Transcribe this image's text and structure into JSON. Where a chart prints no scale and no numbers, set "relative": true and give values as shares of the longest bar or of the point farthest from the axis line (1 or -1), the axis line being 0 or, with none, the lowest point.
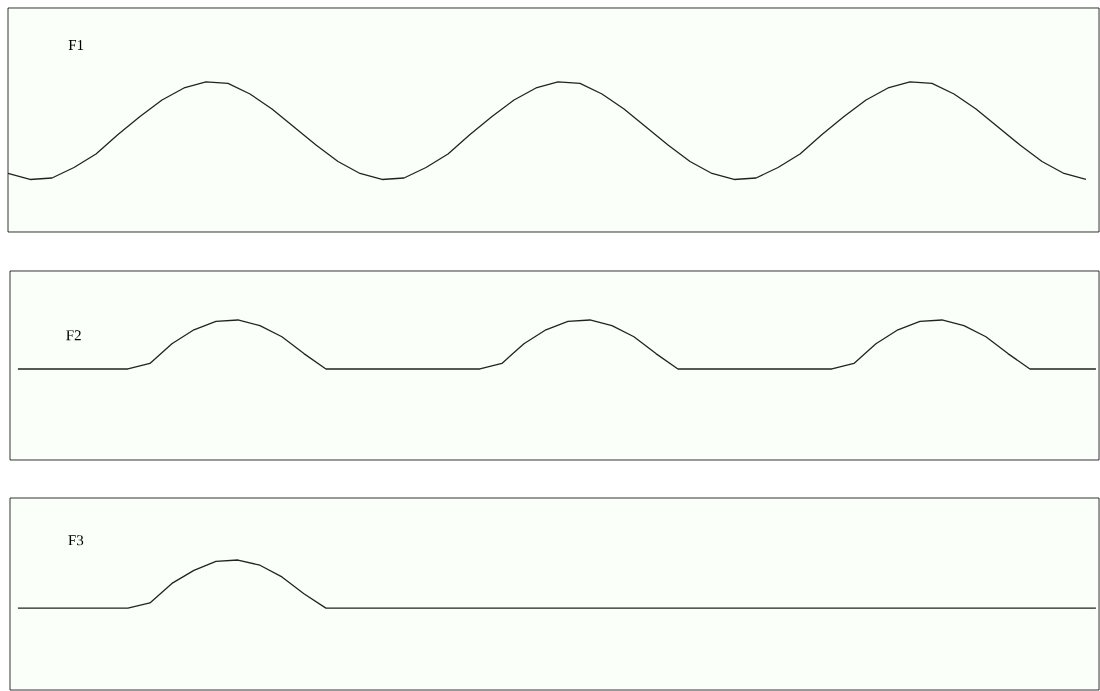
{
  "chart_data": [
    {
      "type": "line",
      "relative": true,
      "color": "#222222",
      "annotations": [
        "F1"
      ],
      "categories": [
        null,
        null,
        null,
        null,
        null,
        null,
        null,
        null,
        null,
        null,
        null,
        null,
        null,
        null,
        null,
        null,
        null,
        null,
        null,
        null,
        null,
        null,
        null,
        null,
        null,
        null,
        null,
        null,
        null,
        null,
        null,
        null,
        null,
        null,
        null,
        null,
        null,
        null,
        null,
        null,
        null,
        null,
        null,
        null,
        null,
        null,
        null,
        null,
        null,
        null
      ],
      "values": [
        0.39,
        0.35,
        0.36,
        0.43,
        0.52,
        0.65,
        0.77,
        0.88,
        0.96,
        1.0,
        0.99,
        0.92,
        0.82,
        0.7,
        0.58,
        0.47,
        0.39,
        0.35,
        0.36,
        0.43,
        0.52,
        0.65,
        0.77,
        0.88,
        0.96,
        1.0,
        0.99,
        0.92,
        0.82,
        0.7,
        0.58,
        0.47,
        0.39,
        0.35,
        0.36,
        0.43,
        0.52,
        0.65,
        0.77,
        0.88,
        0.96,
        1.0,
        0.99,
        0.92,
        0.82,
        0.7,
        0.58,
        0.47,
        0.39,
        0.35
      ]
    },
    {
      "type": "line",
      "relative": true,
      "color": "#222222",
      "annotations": [
        "F2"
      ],
      "categories": [
        null,
        null,
        null,
        null,
        null,
        null,
        null,
        null,
        null,
        null,
        null,
        null,
        null,
        null,
        null,
        null,
        null,
        null,
        null,
        null,
        null,
        null,
        null,
        null,
        null,
        null,
        null,
        null,
        null,
        null,
        null,
        null,
        null,
        null,
        null,
        null,
        null,
        null,
        null,
        null,
        null,
        null,
        null,
        null,
        null,
        null,
        null,
        null,
        null,
        null
      ],
      "values": [
        0.65,
        0.65,
        0.65,
        0.65,
        0.65,
        0.65,
        0.69,
        0.83,
        0.93,
        0.99,
        1.0,
        0.96,
        0.88,
        0.76,
        0.65,
        0.65,
        0.65,
        0.65,
        0.65,
        0.65,
        0.65,
        0.65,
        0.69,
        0.83,
        0.93,
        0.99,
        1.0,
        0.96,
        0.88,
        0.76,
        0.65,
        0.65,
        0.65,
        0.65,
        0.65,
        0.65,
        0.65,
        0.65,
        0.69,
        0.83,
        0.93,
        0.99,
        1.0,
        0.96,
        0.88,
        0.76,
        0.65,
        0.65,
        0.65,
        0.65
      ]
    },
    {
      "type": "line",
      "relative": true,
      "color": "#222222",
      "annotations": [
        "F3"
      ],
      "categories": [
        null,
        null,
        null,
        null,
        null,
        null,
        null,
        null,
        null,
        null,
        null,
        null,
        null,
        null,
        null,
        null,
        null,
        null,
        null,
        null,
        null,
        null,
        null,
        null,
        null,
        null,
        null,
        null,
        null,
        null,
        null,
        null,
        null,
        null,
        null,
        null,
        null,
        null,
        null,
        null,
        null,
        null,
        null,
        null,
        null,
        null,
        null,
        null,
        null,
        null
      ],
      "values": [
        0.63,
        0.63,
        0.63,
        0.63,
        0.63,
        0.63,
        0.67,
        0.82,
        0.92,
        0.99,
        1.0,
        0.96,
        0.87,
        0.74,
        0.63,
        0.63,
        0.63,
        0.63,
        0.63,
        0.63,
        0.63,
        0.63,
        0.63,
        0.63,
        0.63,
        0.63,
        0.63,
        0.63,
        0.63,
        0.63,
        0.63,
        0.63,
        0.63,
        0.63,
        0.63,
        0.63,
        0.63,
        0.63,
        0.63,
        0.63,
        0.63,
        0.63,
        0.63,
        0.63,
        0.63,
        0.63,
        0.63,
        0.63,
        0.63,
        0.63
      ]
    }
  ]
}
